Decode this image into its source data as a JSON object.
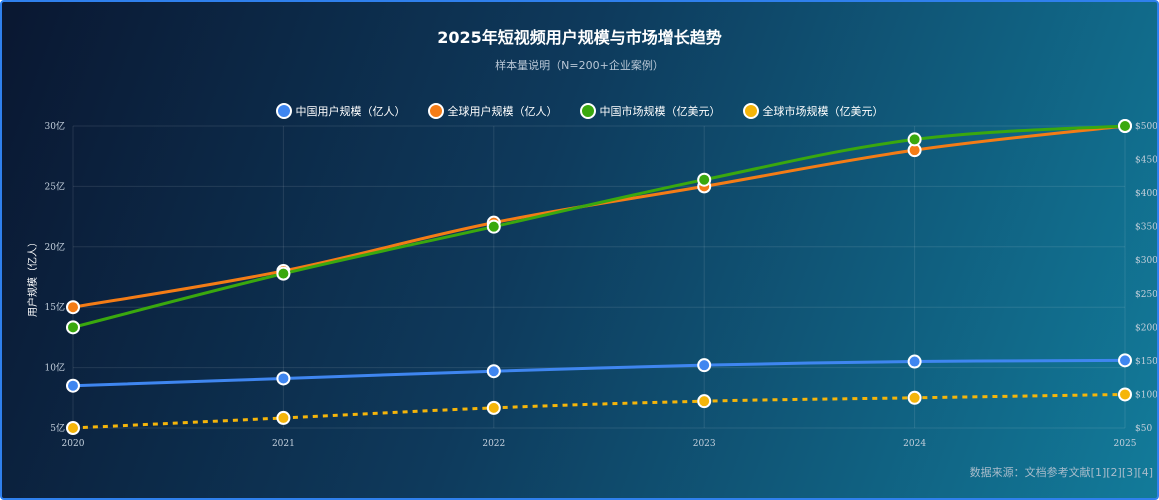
{
  "chart_data": {
    "type": "line",
    "title": "2025年短视频用户规模与市场增长趋势",
    "subtitle": "样本量说明（N=200+企业案例）",
    "x": [
      "2020",
      "2021",
      "2022",
      "2023",
      "2024",
      "2025"
    ],
    "ylabel": "用户规模（亿人）",
    "y_left": {
      "ticks": [
        "5亿",
        "10亿",
        "15亿",
        "20亿",
        "25亿",
        "30亿"
      ],
      "range": [
        5,
        30
      ]
    },
    "y_right": {
      "ticks": [
        "$50",
        "$100",
        "$150",
        "$200",
        "$250",
        "$300",
        "$350",
        "$400",
        "$450",
        "$500"
      ],
      "range": [
        50,
        500
      ]
    },
    "grid": true,
    "legend_position": "top",
    "series": [
      {
        "name": "中国用户规模（亿人）",
        "axis": "left",
        "color": "#3f86f0",
        "dashed": false,
        "values": [
          8.5,
          9.1,
          9.7,
          10.2,
          10.5,
          10.6
        ]
      },
      {
        "name": "全球用户规模（亿人）",
        "axis": "left",
        "color": "#f47c16",
        "dashed": false,
        "values": [
          15,
          18,
          22,
          25,
          28,
          30
        ]
      },
      {
        "name": "中国市场规模（亿美元）",
        "axis": "right",
        "color": "#3aa80e",
        "dashed": false,
        "values": [
          200,
          280,
          350,
          420,
          480,
          500
        ]
      },
      {
        "name": "全球市场规模（亿美元）",
        "axis": "right",
        "color": "#f5b50a",
        "dashed": true,
        "values": [
          50,
          65,
          80,
          90,
          95,
          100
        ]
      }
    ]
  },
  "source": "数据来源：文档参考文献[1][2][3][4]"
}
